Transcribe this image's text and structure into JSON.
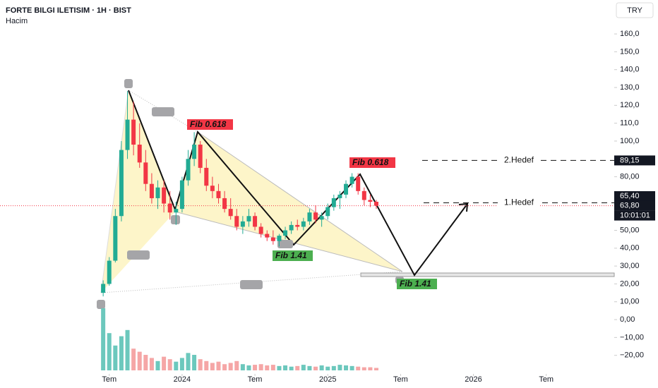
{
  "header": {
    "title": "FORTE BILGI ILETISIM · 1H · BIST",
    "indicator": "Hacim",
    "currency": "TRY"
  },
  "chart_data": {
    "type": "candlestick",
    "ylim": [
      -30.4,
      179
    ],
    "yticks": [
      {
        "value": -20,
        "label": "−20,00"
      },
      {
        "value": -10,
        "label": "−10,00"
      },
      {
        "value": 0,
        "label": "0,00"
      },
      {
        "value": 10,
        "label": "10,00"
      },
      {
        "value": 20,
        "label": "20,00"
      },
      {
        "value": 30,
        "label": "30,00"
      },
      {
        "value": 40,
        "label": "40,00"
      },
      {
        "value": 50,
        "label": "50,00"
      },
      {
        "value": 60,
        "label": "60,00"
      },
      {
        "value": 70,
        "label": "70,00"
      },
      {
        "value": 80,
        "label": "80,00"
      },
      {
        "value": 90,
        "label": "90,00"
      },
      {
        "value": 100,
        "label": "100,0"
      },
      {
        "value": 110,
        "label": "110,0"
      },
      {
        "value": 120,
        "label": "120,0"
      },
      {
        "value": 130,
        "label": "130,0"
      },
      {
        "value": 140,
        "label": "140,0"
      },
      {
        "value": 150,
        "label": "150,0"
      },
      {
        "value": 160,
        "label": "160,0"
      }
    ],
    "xlim": [
      -9,
      41.6
    ],
    "xticks": [
      {
        "value": 0,
        "label": "Tem"
      },
      {
        "value": 6,
        "label": "2024"
      },
      {
        "value": 12,
        "label": "Tem"
      },
      {
        "value": 18,
        "label": "2025"
      },
      {
        "value": 24,
        "label": "Tem"
      },
      {
        "value": 30,
        "label": "2026"
      },
      {
        "value": 36,
        "label": "Tem"
      }
    ],
    "up_color": "#22ab94",
    "down_color": "#f23645",
    "volume_up_color": "#6cc8bd",
    "volume_down_color": "#f5a6a6",
    "volume_lim": [
      0,
      100
    ],
    "series": [
      {
        "x": [
          -0.5,
          0,
          0.5,
          1,
          1.5,
          2,
          2.5,
          3,
          3.5,
          4,
          4.5,
          5,
          5.5,
          6,
          6.5,
          7,
          7.5,
          8,
          8.5,
          9,
          9.5,
          10,
          10.5,
          11,
          11.5,
          12,
          12.5,
          13,
          13.5,
          14,
          14.5,
          15,
          15.5,
          16,
          16.5,
          17,
          17.5,
          18,
          18.5,
          19,
          19.5,
          20,
          20.5,
          21,
          21.5,
          22
        ],
        "open": [
          15,
          20,
          33,
          58,
          95,
          112,
          98,
          88,
          76,
          68,
          74,
          65,
          60,
          62,
          78,
          90,
          98,
          85,
          75,
          72,
          68,
          62,
          58,
          52,
          55,
          58,
          52,
          48,
          46,
          44,
          47,
          50,
          53,
          52,
          55,
          60,
          56,
          58,
          63,
          68,
          70,
          76,
          80,
          72,
          67,
          66
        ],
        "high": [
          22,
          35,
          62,
          100,
          128,
          122,
          110,
          95,
          82,
          78,
          78,
          72,
          66,
          80,
          95,
          105,
          100,
          90,
          80,
          76,
          72,
          68,
          62,
          58,
          62,
          60,
          54,
          50,
          50,
          48,
          52,
          55,
          56,
          57,
          62,
          64,
          60,
          65,
          70,
          72,
          78,
          82,
          82,
          74,
          70,
          67
        ],
        "low": [
          13,
          19,
          32,
          55,
          90,
          92,
          85,
          72,
          65,
          62,
          60,
          56,
          53,
          60,
          75,
          86,
          82,
          72,
          68,
          65,
          60,
          56,
          50,
          48,
          52,
          50,
          46,
          44,
          42,
          41,
          45,
          48,
          50,
          50,
          53,
          54,
          52,
          56,
          61,
          62,
          68,
          74,
          70,
          64,
          63,
          62
        ],
        "close": [
          20,
          33,
          58,
          95,
          112,
          98,
          88,
          76,
          68,
          74,
          65,
          60,
          62,
          78,
          90,
          98,
          85,
          75,
          72,
          68,
          62,
          58,
          52,
          55,
          58,
          52,
          48,
          46,
          44,
          47,
          50,
          53,
          52,
          55,
          60,
          56,
          58,
          63,
          68,
          70,
          76,
          80,
          72,
          67,
          66,
          63.8
        ],
        "volume": [
          100,
          60,
          40,
          55,
          65,
          35,
          30,
          25,
          20,
          15,
          22,
          18,
          14,
          20,
          28,
          25,
          18,
          15,
          12,
          14,
          10,
          12,
          15,
          10,
          8,
          9,
          10,
          8,
          9,
          7,
          8,
          6,
          7,
          9,
          7,
          6,
          8,
          6,
          7,
          9,
          8,
          7,
          6,
          5,
          5,
          4
        ]
      }
    ],
    "levels": [
      {
        "label": "2.Hedef",
        "value": 89.15,
        "value_label": "89,15"
      },
      {
        "label": "1.Hedef",
        "value": 65.4,
        "value_label": "65,40"
      }
    ],
    "last": {
      "value": 63.8,
      "label": "63,80",
      "countdown": "10:01:01"
    },
    "annotations": [
      "Fib 0.618",
      "Fib 0.618",
      "Fib 1.41",
      "Fib 1.41"
    ]
  }
}
